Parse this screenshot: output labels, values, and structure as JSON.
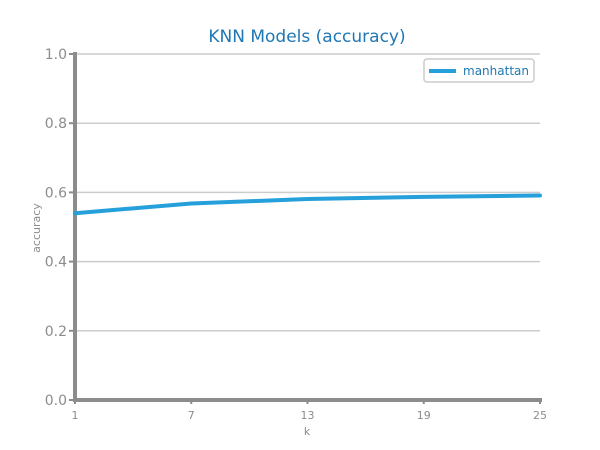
{
  "colors": {
    "title": "#1f77b4",
    "series": "#25a0da",
    "axis": "#8c8c8c",
    "grid": "#cccccc",
    "tick_text": "#8c8c8c"
  },
  "chart_data": {
    "type": "line",
    "title": "KNN Models (accuracy)",
    "xlabel": "k",
    "ylabel": "accuracy",
    "x": [
      1,
      7,
      13,
      19,
      25
    ],
    "x_ticks": [
      "1",
      "7",
      "13",
      "19",
      "25"
    ],
    "y_ticks": [
      "0.0",
      "0.2",
      "0.4",
      "0.6",
      "0.8",
      "1.0"
    ],
    "ylim": [
      0,
      1
    ],
    "xlim": [
      1,
      25
    ],
    "grid": "horizontal",
    "legend_position": "top-right",
    "series": [
      {
        "name": "manhattan",
        "values": [
          0.54,
          0.568,
          0.581,
          0.587,
          0.591
        ]
      }
    ]
  }
}
